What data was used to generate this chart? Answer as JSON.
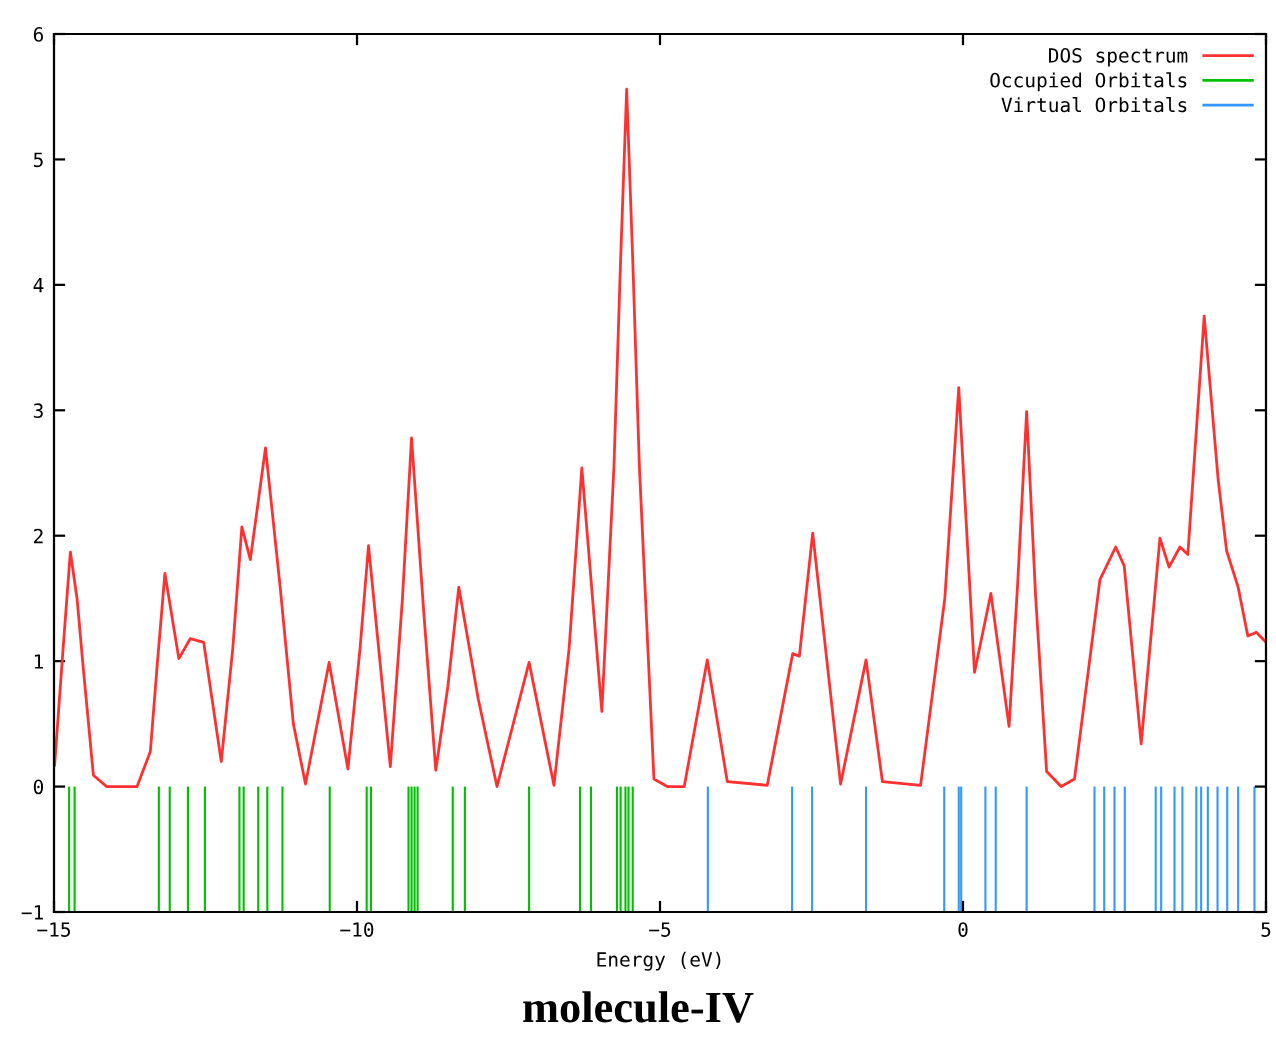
{
  "chart_data": {
    "type": "line",
    "title": "molecule-IV",
    "xlabel": "Energy (eV)",
    "xlim": [
      -15,
      5
    ],
    "xticks": [
      -15,
      -10,
      -5,
      0,
      5
    ],
    "ylim": [
      -1,
      6
    ],
    "yticks": [
      -1,
      0,
      1,
      2,
      3,
      4,
      5,
      6
    ],
    "grid": false,
    "legend": "top right",
    "series": [
      {
        "name": "DOS spectrum",
        "color": "#ff3030",
        "x": [
          -14.99,
          -14.85,
          -14.73,
          -14.62,
          -14.52,
          -14.35,
          -14.13,
          -13.63,
          -13.41,
          -13.3,
          -13.17,
          -12.94,
          -12.75,
          -12.53,
          -12.24,
          -12.05,
          -11.9,
          -11.76,
          -11.51,
          -11.27,
          -11.05,
          -10.85,
          -10.46,
          -10.15,
          -9.95,
          -9.81,
          -9.45,
          -9.25,
          -9.1,
          -8.9,
          -8.7,
          -8.5,
          -8.32,
          -8.0,
          -7.69,
          -7.16,
          -6.75,
          -6.5,
          -6.29,
          -5.96,
          -5.76,
          -5.65,
          -5.55,
          -5.45,
          -5.34,
          -5.1,
          -4.88,
          -4.6,
          -4.22,
          -3.89,
          -3.23,
          -2.81,
          -2.7,
          -2.48,
          -2.02,
          -1.6,
          -1.33,
          -0.7,
          -0.3,
          -0.07,
          0.19,
          0.46,
          0.76,
          0.9,
          1.05,
          1.2,
          1.38,
          1.62,
          1.84,
          2.26,
          2.52,
          2.66,
          2.94,
          3.25,
          3.4,
          3.58,
          3.71,
          3.98,
          4.21,
          4.35,
          4.54,
          4.7,
          4.84,
          5.0
        ],
        "values": [
          0.17,
          1.1,
          1.87,
          1.5,
          0.96,
          0.09,
          0,
          0,
          0.28,
          0.95,
          1.7,
          1.02,
          1.18,
          1.15,
          0.2,
          1.1,
          2.07,
          1.81,
          2.7,
          1.6,
          0.5,
          0.02,
          0.99,
          0.14,
          1.1,
          1.92,
          0.16,
          1.5,
          2.78,
          1.4,
          0.13,
          0.8,
          1.59,
          0.7,
          0,
          0.99,
          0.01,
          1.1,
          2.54,
          0.6,
          2.55,
          4.2,
          5.56,
          4.2,
          2.55,
          0.06,
          0,
          0,
          1.01,
          0.04,
          0.01,
          1.06,
          1.04,
          2.02,
          0.02,
          1.01,
          0.04,
          0.01,
          1.5,
          3.18,
          0.91,
          1.54,
          0.48,
          1.6,
          2.99,
          1.5,
          0.12,
          0,
          0.06,
          1.65,
          1.91,
          1.76,
          0.34,
          1.98,
          1.75,
          1.91,
          1.85,
          3.75,
          2.45,
          1.88,
          1.59,
          1.2,
          1.23,
          1.15
        ]
      },
      {
        "name": "Occupied Orbitals",
        "type": "bar",
        "color": "#00c000",
        "x": [
          -14.75,
          -14.66,
          -13.27,
          -13.09,
          -12.79,
          -12.51,
          -11.94,
          -11.87,
          -11.63,
          -11.48,
          -11.23,
          -10.45,
          -9.84,
          -9.77,
          -9.15,
          -9.1,
          -9.05,
          -9.0,
          -8.42,
          -8.22,
          -7.16,
          -6.32,
          -6.14,
          -5.71,
          -5.65,
          -5.57,
          -5.52,
          -5.45
        ],
        "values": [
          -1,
          -1,
          -1,
          -1,
          -1,
          -1,
          -1,
          -1,
          -1,
          -1,
          -1,
          -1,
          -1,
          -1,
          -1,
          -1,
          -1,
          -1,
          -1,
          -1,
          -1,
          -1,
          -1,
          -1,
          -1,
          -1,
          -1,
          -1
        ]
      },
      {
        "name": "Virtual Orbitals",
        "type": "bar",
        "color": "#3399ff",
        "x": [
          -4.21,
          -2.82,
          -2.49,
          -1.6,
          -0.31,
          -0.07,
          -0.03,
          0.37,
          0.54,
          1.05,
          2.17,
          2.33,
          2.5,
          2.67,
          3.18,
          3.27,
          3.49,
          3.62,
          3.85,
          3.93,
          4.04,
          4.2,
          4.36,
          4.54,
          4.81
        ],
        "values": [
          -1,
          -1,
          -1,
          -1,
          -1,
          -1,
          -1,
          -1,
          -1,
          -1,
          -1,
          -1,
          -1,
          -1,
          -1,
          -1,
          -1,
          -1,
          -1,
          -1,
          -1,
          -1,
          -1,
          -1,
          -1
        ]
      }
    ]
  }
}
